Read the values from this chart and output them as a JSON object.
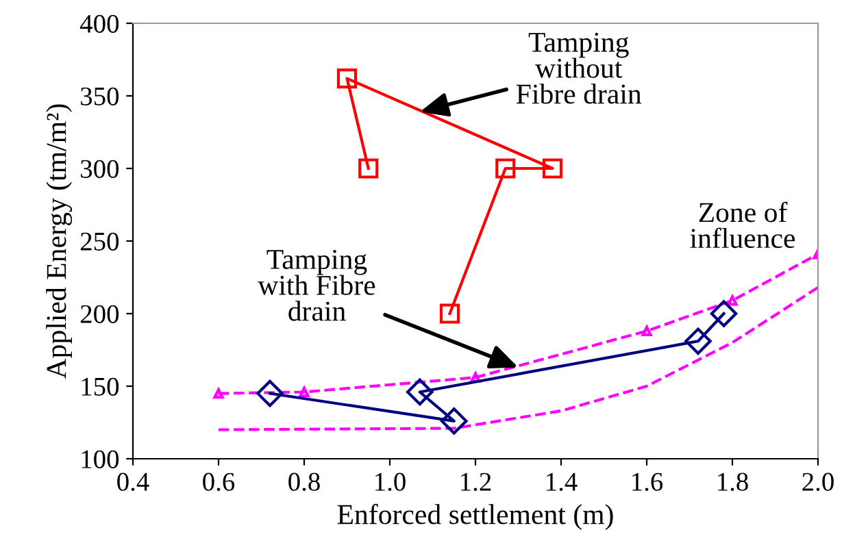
{
  "chart_data": {
    "type": "line",
    "xlabel": "Enforced settlement (m)",
    "ylabel": "Applied Energy (tm/m²)",
    "xlim": [
      0.4,
      2.0
    ],
    "xticks": [
      {
        "value": 0.4,
        "label": "0.4"
      },
      {
        "value": 0.6,
        "label": "0.6"
      },
      {
        "value": 0.8,
        "label": "0.8"
      },
      {
        "value": 1.0,
        "label": "1.0"
      },
      {
        "value": 1.2,
        "label": "1.2"
      },
      {
        "value": 1.4,
        "label": "1.4"
      },
      {
        "value": 1.6,
        "label": "1.6"
      },
      {
        "value": 1.8,
        "label": "1.8"
      },
      {
        "value": 2.0,
        "label": "2.0"
      }
    ],
    "ylim": [
      100,
      400
    ],
    "yticks": [
      100,
      150,
      200,
      250,
      300,
      350,
      400
    ],
    "grid": false,
    "legend": false,
    "series": [
      {
        "color": "#ff00ff",
        "marker": "triangle",
        "line_style": "dashed",
        "x": [
          0.6,
          0.8,
          1.2,
          1.6,
          1.8,
          2.0
        ],
        "values": [
          145,
          146,
          156,
          188,
          209,
          241
        ]
      },
      {
        "color": "#ff00ff",
        "marker": "none",
        "line_style": "dashed",
        "x": [
          0.6,
          1.15,
          1.4,
          1.6,
          1.8,
          2.0
        ],
        "values": [
          120,
          121,
          133,
          150,
          180,
          218
        ]
      },
      {
        "color": "#ff0000",
        "marker": "square",
        "line_style": "solid",
        "x": [
          0.95,
          0.9,
          1.38,
          1.27,
          1.14
        ],
        "values": [
          300,
          362,
          300,
          300,
          200
        ]
      },
      {
        "color": "#000080",
        "marker": "diamond",
        "line_style": "solid",
        "x": [
          0.72,
          1.15,
          1.07,
          1.72,
          1.78
        ],
        "values": [
          145,
          126,
          146,
          181,
          200
        ]
      }
    ],
    "annotations": [
      {
        "text": "Tamping\nwithout\nFibre drain",
        "x": 1.07,
        "y": 339
      },
      {
        "text": "Tamping\nwith Fibre\ndrain",
        "x": 1.3,
        "y": 163
      },
      "Zone of\ninfluence"
    ]
  }
}
